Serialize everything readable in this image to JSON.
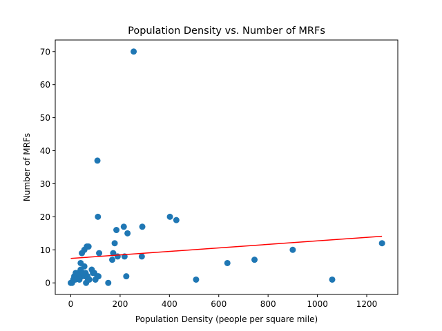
{
  "chart_data": {
    "type": "scatter",
    "title": "Population Density vs. Number of MRFs",
    "xlabel": "Population Density (people per square mile)",
    "ylabel": "Number of MRFs",
    "xlim": [
      -63,
      1326
    ],
    "ylim": [
      -3.5,
      73.5
    ],
    "xticks": [
      0,
      200,
      400,
      600,
      800,
      1000,
      1200
    ],
    "yticks": [
      0,
      10,
      20,
      30,
      40,
      50,
      60,
      70
    ],
    "grid": false,
    "legend": "none",
    "point_color": "#1f77b4",
    "trend_color": "#ff0000",
    "points": [
      {
        "x": 0,
        "y": 0
      },
      {
        "x": 5,
        "y": 0
      },
      {
        "x": 10,
        "y": 1
      },
      {
        "x": 14,
        "y": 2
      },
      {
        "x": 18,
        "y": 1
      },
      {
        "x": 20,
        "y": 3
      },
      {
        "x": 25,
        "y": 2
      },
      {
        "x": 30,
        "y": 3
      },
      {
        "x": 35,
        "y": 1
      },
      {
        "x": 40,
        "y": 4
      },
      {
        "x": 40,
        "y": 6
      },
      {
        "x": 45,
        "y": 2
      },
      {
        "x": 45,
        "y": 9
      },
      {
        "x": 50,
        "y": 3
      },
      {
        "x": 55,
        "y": 5
      },
      {
        "x": 55,
        "y": 10
      },
      {
        "x": 58,
        "y": 2
      },
      {
        "x": 60,
        "y": 3
      },
      {
        "x": 62,
        "y": 0
      },
      {
        "x": 65,
        "y": 11
      },
      {
        "x": 68,
        "y": 2
      },
      {
        "x": 70,
        "y": 1
      },
      {
        "x": 72,
        "y": 11
      },
      {
        "x": 75,
        "y": 1
      },
      {
        "x": 85,
        "y": 4
      },
      {
        "x": 90,
        "y": 3
      },
      {
        "x": 95,
        "y": 3
      },
      {
        "x": 100,
        "y": 1
      },
      {
        "x": 108,
        "y": 2
      },
      {
        "x": 112,
        "y": 2
      },
      {
        "x": 108,
        "y": 37
      },
      {
        "x": 110,
        "y": 20
      },
      {
        "x": 115,
        "y": 9
      },
      {
        "x": 152,
        "y": 0
      },
      {
        "x": 168,
        "y": 7
      },
      {
        "x": 172,
        "y": 9
      },
      {
        "x": 178,
        "y": 12
      },
      {
        "x": 185,
        "y": 16
      },
      {
        "x": 190,
        "y": 8
      },
      {
        "x": 215,
        "y": 17
      },
      {
        "x": 218,
        "y": 8
      },
      {
        "x": 225,
        "y": 2
      },
      {
        "x": 230,
        "y": 15
      },
      {
        "x": 255,
        "y": 70
      },
      {
        "x": 288,
        "y": 8
      },
      {
        "x": 290,
        "y": 17
      },
      {
        "x": 402,
        "y": 20
      },
      {
        "x": 428,
        "y": 19
      },
      {
        "x": 508,
        "y": 1
      },
      {
        "x": 635,
        "y": 6
      },
      {
        "x": 745,
        "y": 7
      },
      {
        "x": 900,
        "y": 10
      },
      {
        "x": 1060,
        "y": 1
      },
      {
        "x": 1262,
        "y": 12
      }
    ],
    "trendline": {
      "x": [
        0,
        1262
      ],
      "y": [
        7.4,
        14.1
      ]
    }
  }
}
